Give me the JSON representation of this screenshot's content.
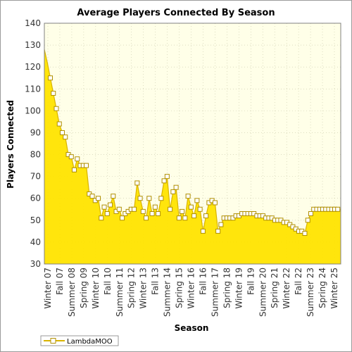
{
  "chart_data": {
    "type": "area",
    "title": "Average Players Connected By Season",
    "xlabel": "Season",
    "ylabel": "Players Connected",
    "ylim": [
      30,
      140
    ],
    "yticks": [
      30,
      40,
      50,
      60,
      70,
      80,
      90,
      100,
      110,
      120,
      130,
      140
    ],
    "grid": true,
    "legend_position": "bottom-left",
    "colors": {
      "fill": "#ffe400",
      "line": "#d9b300",
      "marker_fill": "#ffffff",
      "plot_bg": "#ffffe8"
    },
    "x_labels": [
      "Winter 07",
      "Fall 07",
      "Summer 08",
      "Spring 09",
      "Winter 10",
      "Fall 10",
      "Summer 11",
      "Spring 12",
      "Winter 13",
      "Fall 13",
      "Summer 14",
      "Spring 15",
      "Winter 16",
      "Fall 16",
      "Summer 17",
      "Spring 18",
      "Winter 19",
      "Fall 19",
      "Summer 20",
      "Spring 21",
      "Winter 22",
      "Fall 22",
      "Summer 23",
      "Spring 24",
      "Winter 25"
    ],
    "series": [
      {
        "name": "LambdaMOO",
        "x": [
          0,
          1,
          2,
          3,
          4,
          5,
          6,
          7,
          8,
          9,
          10,
          11,
          12,
          13,
          14,
          15,
          16,
          17,
          18,
          19,
          20,
          21,
          22,
          23,
          24,
          25,
          26,
          27,
          28,
          29,
          30,
          31,
          32,
          33,
          34,
          35,
          36,
          37,
          38,
          39,
          40,
          41,
          42,
          43,
          44,
          45,
          46,
          47,
          48,
          49,
          50,
          51,
          52,
          53,
          54,
          55,
          56,
          57,
          58,
          59,
          60,
          61,
          62,
          63,
          64,
          65,
          66,
          67,
          68,
          69,
          70,
          71,
          72,
          73,
          74,
          75,
          76,
          77,
          78,
          79,
          80,
          81,
          82,
          83,
          84,
          85,
          86,
          87,
          88,
          89,
          90,
          91,
          92,
          93,
          94,
          95,
          96,
          97,
          98,
          99
        ],
        "values": [
          128,
          122,
          115,
          108,
          101,
          94,
          90,
          88,
          80,
          79,
          73,
          78,
          75,
          75,
          75,
          62,
          61,
          59,
          60,
          51,
          56,
          53,
          57,
          61,
          54,
          55,
          51,
          53,
          54,
          55,
          55,
          67,
          60,
          54,
          51,
          60,
          53,
          56,
          53,
          60,
          68,
          70,
          55,
          63,
          65,
          51,
          54,
          51,
          61,
          56,
          52,
          59,
          55,
          45,
          52,
          58,
          59,
          58,
          45,
          48,
          51,
          51,
          51,
          51,
          52,
          52,
          53,
          53,
          53,
          53,
          53,
          52,
          52,
          52,
          51,
          51,
          51,
          50,
          50,
          50,
          49,
          49,
          48,
          47,
          46,
          45,
          45,
          44,
          50,
          53,
          55,
          55,
          55,
          55,
          55,
          55,
          55,
          55,
          55,
          55
        ],
        "markers": [
          2,
          3,
          4,
          5,
          6,
          7,
          8,
          9,
          10,
          11,
          12,
          13,
          14,
          15,
          16,
          17,
          18,
          19,
          20,
          21,
          22,
          23,
          24,
          25,
          26,
          27,
          28,
          29,
          30,
          31,
          32,
          33,
          34,
          35,
          36,
          37,
          38,
          39,
          40,
          41,
          42,
          43,
          44,
          45,
          46,
          47,
          48,
          49,
          50,
          51,
          52,
          53,
          54,
          55,
          56,
          57,
          58,
          59,
          60,
          61,
          62,
          63,
          64,
          65,
          66,
          67,
          68,
          69,
          70,
          71,
          72,
          73,
          74,
          75,
          76,
          77,
          78,
          79,
          80,
          81,
          82,
          83,
          84,
          85,
          86,
          87,
          88,
          89,
          90,
          91,
          92,
          93,
          94,
          95,
          96,
          97,
          98
        ]
      }
    ]
  }
}
